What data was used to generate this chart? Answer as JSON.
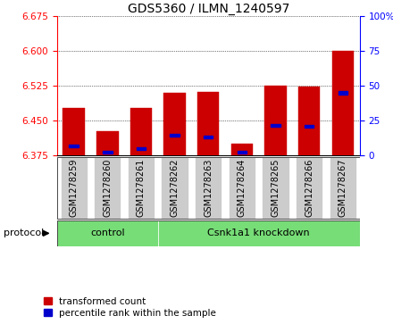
{
  "title": "GDS5360 / ILMN_1240597",
  "samples": [
    "GSM1278259",
    "GSM1278260",
    "GSM1278261",
    "GSM1278262",
    "GSM1278263",
    "GSM1278264",
    "GSM1278265",
    "GSM1278266",
    "GSM1278267"
  ],
  "bar_tops": [
    6.478,
    6.428,
    6.478,
    6.51,
    6.512,
    6.4,
    6.525,
    6.523,
    6.6
  ],
  "blue_positions": [
    6.395,
    6.383,
    6.39,
    6.418,
    6.415,
    6.383,
    6.44,
    6.438,
    6.51
  ],
  "baseline": 6.375,
  "ylim_left": [
    6.375,
    6.675
  ],
  "ylim_right": [
    0,
    100
  ],
  "yticks_left": [
    6.375,
    6.45,
    6.525,
    6.6,
    6.675
  ],
  "yticks_right": [
    0,
    25,
    50,
    75,
    100
  ],
  "bar_color": "#cc0000",
  "blue_color": "#0000cc",
  "bar_width": 0.65,
  "n_control": 3,
  "n_knockdown": 6,
  "control_label": "control",
  "knockdown_label": "Csnk1a1 knockdown",
  "protocol_label": "protocol",
  "legend_red": "transformed count",
  "legend_blue": "percentile rank within the sample",
  "group_box_color": "#77dd77",
  "tick_bg_color": "#cccccc",
  "title_fontsize": 10,
  "tick_fontsize": 7.5,
  "sample_fontsize": 7,
  "label_fontsize": 8
}
